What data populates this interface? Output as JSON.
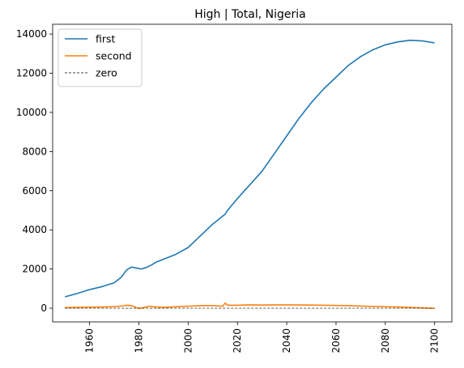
{
  "chart_data": {
    "type": "line",
    "title": "High | Total, Nigeria",
    "xlabel": "",
    "ylabel": "",
    "xlim": [
      1945,
      2107
    ],
    "ylim": [
      -700,
      14500
    ],
    "xticks": [
      1960,
      1980,
      2000,
      2020,
      2040,
      2060,
      2080,
      2100
    ],
    "yticks": [
      0,
      2000,
      4000,
      6000,
      8000,
      10000,
      12000,
      14000
    ],
    "grid": false,
    "legend_position": "upper left",
    "series": [
      {
        "name": "first",
        "color": "#1f77b4",
        "style": "solid",
        "x": [
          1950,
          1955,
          1960,
          1965,
          1970,
          1973,
          1975,
          1977,
          1979,
          1981,
          1983,
          1985,
          1987,
          1990,
          1995,
          2000,
          2005,
          2010,
          2014,
          2015,
          2016,
          2020,
          2025,
          2030,
          2035,
          2040,
          2045,
          2050,
          2055,
          2060,
          2065,
          2070,
          2075,
          2080,
          2085,
          2090,
          2095,
          2100
        ],
        "y": [
          580,
          750,
          950,
          1100,
          1300,
          1600,
          1950,
          2100,
          2050,
          2000,
          2080,
          2200,
          2350,
          2500,
          2750,
          3100,
          3700,
          4300,
          4700,
          4800,
          5000,
          5600,
          6300,
          7000,
          7900,
          8800,
          9700,
          10500,
          11200,
          11800,
          12400,
          12850,
          13200,
          13450,
          13600,
          13680,
          13650,
          13550
        ]
      },
      {
        "name": "second",
        "color": "#ff7f0e",
        "style": "solid",
        "x": [
          1950,
          1955,
          1960,
          1965,
          1970,
          1973,
          1975,
          1977,
          1979,
          1980,
          1982,
          1984,
          1986,
          1990,
          1995,
          2000,
          2005,
          2010,
          2014,
          2015,
          2016,
          2020,
          2025,
          2030,
          2035,
          2040,
          2045,
          2050,
          2055,
          2060,
          2065,
          2070,
          2075,
          2080,
          2085,
          2090,
          2095,
          2100
        ],
        "y": [
          30,
          40,
          50,
          60,
          80,
          110,
          150,
          130,
          30,
          -10,
          30,
          100,
          70,
          40,
          70,
          100,
          130,
          130,
          100,
          260,
          150,
          150,
          170,
          160,
          170,
          170,
          165,
          160,
          150,
          140,
          130,
          110,
          90,
          75,
          60,
          40,
          15,
          -10
        ]
      },
      {
        "name": "zero",
        "color": "#000000",
        "style": "dashed",
        "x": [
          1950,
          2100
        ],
        "y": [
          0,
          0
        ]
      }
    ]
  }
}
